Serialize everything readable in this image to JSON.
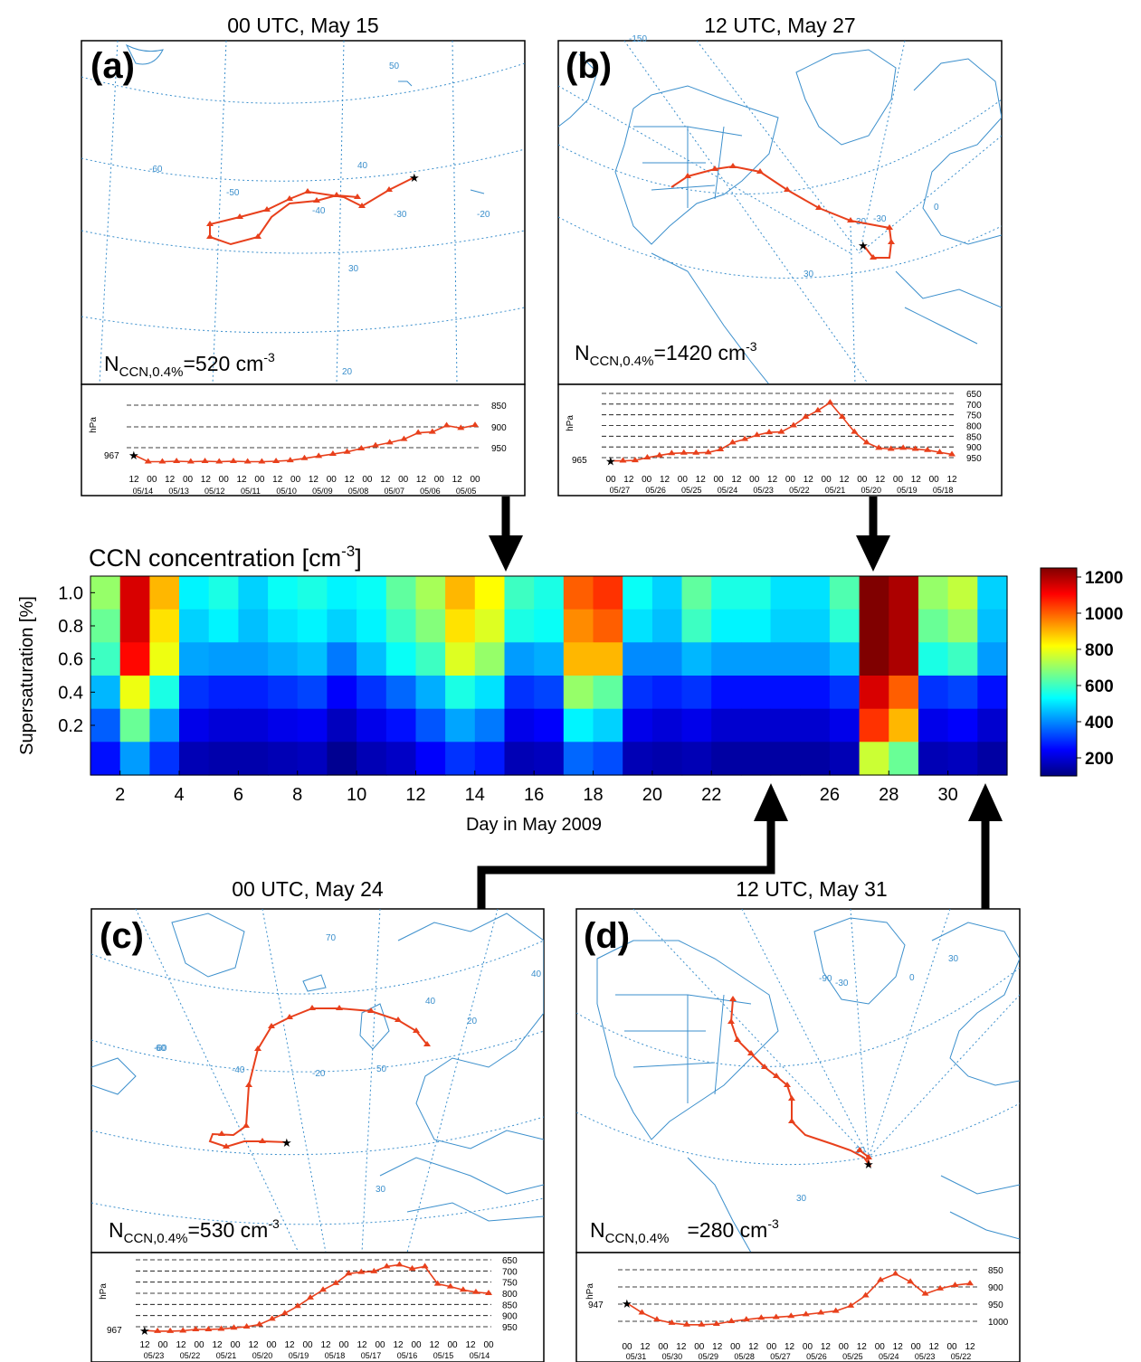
{
  "colors": {
    "trajectory": "#e8401c",
    "coastline": "#3b8fcc",
    "arrow": "#000000"
  },
  "icons": [
    "star-icon",
    "triangle-marker-icon"
  ],
  "panels": [
    {
      "id": "a",
      "label": "(a)",
      "title": "00 UTC, May 15",
      "ncc_prefix": "N",
      "ncc_sub": "CCN,0.4%",
      "ncc_value": "=520 cm",
      "ncc_exp": "-3",
      "grid_labels": [
        "50",
        "40",
        "30",
        "20",
        "-60",
        "-50",
        "-40",
        "-30",
        "-20"
      ],
      "pressure_label": "hPa",
      "start_pressure": "967",
      "pressure_levels": [
        "850",
        "900",
        "950"
      ],
      "time_ticks": [
        "12",
        "00",
        "12",
        "00",
        "12",
        "00",
        "12",
        "00",
        "12",
        "00",
        "12",
        "00",
        "12",
        "00",
        "12",
        "00",
        "12",
        "00",
        "12",
        "00"
      ],
      "dates": [
        "05/14",
        "05/13",
        "05/12",
        "05/11",
        "05/10",
        "05/09",
        "05/08",
        "05/07",
        "05/06",
        "05/05"
      ],
      "profile": [
        967,
        983,
        983,
        982,
        983,
        982,
        983,
        982,
        983,
        983,
        982,
        980,
        975,
        970,
        965,
        960,
        952,
        945,
        938,
        930,
        915,
        913,
        898,
        904,
        897
      ]
    },
    {
      "id": "b",
      "label": "(b)",
      "title": "12 UTC, May 27",
      "ncc_prefix": "N",
      "ncc_sub": "CCN,0.4%",
      "ncc_value": "=1420 cm",
      "ncc_exp": "-3",
      "grid_labels": [
        "-150",
        "30",
        "30",
        "-30",
        "0"
      ],
      "pressure_label": "hPa",
      "start_pressure": "965",
      "pressure_levels": [
        "650",
        "700",
        "750",
        "800",
        "850",
        "900",
        "950"
      ],
      "time_ticks": [
        "00",
        "12",
        "00",
        "12",
        "00",
        "12",
        "00",
        "12",
        "00",
        "12",
        "00",
        "12",
        "00",
        "12",
        "00",
        "12",
        "00",
        "12",
        "00",
        "12"
      ],
      "dates": [
        "05/27",
        "05/26",
        "05/25",
        "05/24",
        "05/23",
        "05/22",
        "05/21",
        "05/20",
        "05/19",
        "05/18"
      ],
      "profile": [
        965,
        965,
        963,
        950,
        940,
        930,
        928,
        928,
        926,
        912,
        880,
        864,
        845,
        832,
        830,
        800,
        760,
        730,
        693,
        760,
        830,
        880,
        905,
        910,
        905,
        910,
        915,
        925,
        935
      ]
    },
    {
      "id": "c",
      "label": "(c)",
      "title": "00 UTC, May 24",
      "ncc_prefix": "N",
      "ncc_sub": "CCN,0.4%",
      "ncc_value": "=530 cm",
      "ncc_exp": "-3",
      "grid_labels": [
        "70",
        "60",
        "50",
        "40",
        "30",
        "-60",
        "-40",
        "-20",
        "20",
        "40"
      ],
      "pressure_label": "hPa",
      "start_pressure": "967",
      "pressure_levels": [
        "650",
        "700",
        "750",
        "800",
        "850",
        "900",
        "950"
      ],
      "time_ticks": [
        "12",
        "00",
        "12",
        "00",
        "12",
        "00",
        "12",
        "00",
        "12",
        "00",
        "12",
        "00",
        "12",
        "00",
        "12",
        "00",
        "12",
        "00",
        "12",
        "00"
      ],
      "dates": [
        "05/23",
        "05/22",
        "05/21",
        "05/20",
        "05/19",
        "05/18",
        "05/17",
        "05/16",
        "05/15",
        "05/14"
      ],
      "profile": [
        967,
        970,
        970,
        968,
        962,
        962,
        960,
        955,
        950,
        940,
        915,
        890,
        858,
        820,
        785,
        755,
        712,
        705,
        702,
        680,
        672,
        690,
        680,
        758,
        770,
        785,
        795,
        800
      ]
    },
    {
      "id": "d",
      "label": "(d)",
      "title": "12 UTC, May 31",
      "ncc_prefix": "N",
      "ncc_sub": "CCN,0.4%",
      "ncc_value": "=280 cm",
      "ncc_exp": "-3",
      "grid_labels": [
        "-90",
        "-30",
        "0",
        "30",
        "30",
        "30"
      ],
      "pressure_label": "hPa",
      "start_pressure": "947",
      "pressure_levels": [
        "850",
        "900",
        "950",
        "1000"
      ],
      "time_ticks": [
        "00",
        "12",
        "00",
        "12",
        "00",
        "12",
        "00",
        "12",
        "00",
        "12",
        "00",
        "12",
        "00",
        "12",
        "00",
        "12",
        "00",
        "12",
        "00",
        "12"
      ],
      "dates": [
        "05/31",
        "05/30",
        "05/29",
        "05/28",
        "05/27",
        "05/26",
        "05/25",
        "05/24",
        "05/23",
        "05/22"
      ],
      "profile": [
        947,
        975,
        995,
        1005,
        1010,
        1010,
        1008,
        1000,
        995,
        990,
        988,
        985,
        980,
        975,
        970,
        955,
        925,
        880,
        862,
        885,
        920,
        905,
        895,
        890
      ]
    }
  ],
  "chart_data": {
    "type": "heatmap",
    "title": "CCN concentration [cm",
    "title_exp": "-3",
    "title_suffix": "]",
    "xlabel": "Day in May 2009",
    "ylabel": "Supersaturation [%]",
    "x_ticks": [
      "2",
      "4",
      "6",
      "8",
      "10",
      "12",
      "14",
      "16",
      "18",
      "20",
      "22",
      "26",
      "28",
      "30"
    ],
    "y_ticks": [
      "1.0",
      "0.8",
      "0.6",
      "0.4",
      "0.2"
    ],
    "xlim": [
      1,
      32
    ],
    "colorbar_ticks": [
      "1200",
      "1000",
      "800",
      "600",
      "400",
      "200"
    ],
    "colormap": "jet",
    "clim": [
      100,
      1250
    ],
    "rows": [
      "1.0",
      "0.8",
      "0.6",
      "0.4",
      "0.2",
      "0.1"
    ],
    "x": [
      1.5,
      2.5,
      3.5,
      4.5,
      5.5,
      6.5,
      7.5,
      8.5,
      9.5,
      10.5,
      11.5,
      12.5,
      13.5,
      14.5,
      15.5,
      16.5,
      17.5,
      18.5,
      19.5,
      20.5,
      21.5,
      22.5,
      23.5,
      24.5,
      25.5,
      26.5,
      27.5,
      28.5,
      29.5,
      30.5,
      31.5
    ],
    "values": [
      [
        700,
        1150,
        900,
        520,
        560,
        480,
        540,
        560,
        520,
        540,
        640,
        720,
        900,
        820,
        600,
        560,
        1000,
        1050,
        540,
        480,
        640,
        560,
        560,
        500,
        500,
        620,
        1250,
        1200,
        700,
        750,
        480
      ],
      [
        650,
        1150,
        850,
        480,
        520,
        460,
        500,
        520,
        480,
        520,
        600,
        680,
        850,
        780,
        560,
        540,
        950,
        1000,
        500,
        460,
        600,
        520,
        520,
        480,
        480,
        580,
        1250,
        1200,
        650,
        700,
        460
      ],
      [
        600,
        1100,
        800,
        430,
        420,
        420,
        440,
        460,
        380,
        460,
        540,
        600,
        780,
        700,
        420,
        440,
        900,
        900,
        400,
        400,
        450,
        420,
        420,
        420,
        420,
        460,
        1250,
        1200,
        560,
        600,
        420
      ],
      [
        450,
        800,
        560,
        300,
        280,
        280,
        300,
        320,
        240,
        300,
        360,
        440,
        560,
        500,
        300,
        320,
        700,
        640,
        300,
        280,
        300,
        260,
        260,
        260,
        260,
        300,
        1150,
        1000,
        300,
        320,
        260
      ],
      [
        350,
        650,
        420,
        220,
        200,
        200,
        220,
        230,
        170,
        220,
        260,
        340,
        430,
        380,
        220,
        240,
        520,
        480,
        220,
        200,
        220,
        190,
        190,
        190,
        190,
        220,
        1050,
        900,
        220,
        240,
        190
      ],
      [
        260,
        420,
        300,
        160,
        150,
        150,
        160,
        170,
        120,
        160,
        180,
        240,
        300,
        270,
        160,
        170,
        360,
        330,
        160,
        150,
        160,
        140,
        140,
        140,
        140,
        160,
        760,
        650,
        160,
        170,
        140
      ]
    ]
  }
}
